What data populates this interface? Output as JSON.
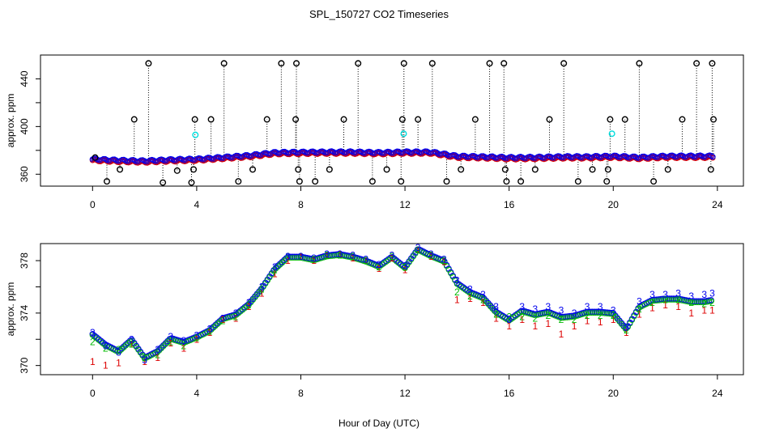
{
  "figure_title": "SPL_150727  CO2 Timeseries",
  "x_axis_label": "Hour of Day (UTC)",
  "colors": {
    "black": "#000000",
    "red": "#dd0000",
    "green": "#00bb00",
    "blue": "#0000ee",
    "cyan": "#00dddd"
  },
  "chart_data": [
    {
      "type": "scatter",
      "panel": "top",
      "ylabel": "approx. ppm",
      "xlim": [
        -2,
        25
      ],
      "ylim": [
        350,
        460
      ],
      "x_ticks": [
        0,
        4,
        8,
        12,
        16,
        20,
        24
      ],
      "y_ticks": [
        360,
        400,
        440
      ],
      "y_minor_ticks": [
        380,
        420
      ],
      "spike_times": [
        0.1,
        0.55,
        1.05,
        1.6,
        2.15,
        2.7,
        3.25,
        3.8,
        3.88,
        3.93,
        4.55,
        5.05,
        5.6,
        6.15,
        6.7,
        7.25,
        7.8,
        7.83,
        7.9,
        7.95,
        8.55,
        9.1,
        9.65,
        10.2,
        10.75,
        11.3,
        11.85,
        11.9,
        11.96,
        12.5,
        13.05,
        13.6,
        14.15,
        14.7,
        15.25,
        15.8,
        15.85,
        15.9,
        16.45,
        17.0,
        17.55,
        18.1,
        18.65,
        19.2,
        19.75,
        19.8,
        19.88,
        20.45,
        21.0,
        21.55,
        22.1,
        22.65,
        23.2,
        23.75,
        23.8,
        23.85
      ],
      "spike_values": [
        374,
        354,
        364,
        406,
        453,
        353,
        363,
        353,
        364,
        406,
        406,
        453,
        354,
        364,
        406,
        453,
        406,
        453,
        364,
        354,
        354,
        364,
        406,
        453,
        354,
        364,
        354,
        406,
        453,
        406,
        453,
        354,
        364,
        406,
        453,
        453,
        364,
        354,
        354,
        364,
        406,
        453,
        354,
        364,
        354,
        364,
        406,
        406,
        453,
        354,
        364,
        406,
        453,
        364,
        453,
        406
      ],
      "cyan_points": {
        "x": [
          3.95,
          11.95,
          19.95
        ],
        "y": [
          393,
          394,
          394
        ]
      },
      "series_note": "main trace: hourly-interpolated base level shown as dense circle markers",
      "base_level_x": [
        0,
        1,
        2,
        3,
        4,
        5,
        6,
        7,
        8,
        9,
        10,
        11,
        12,
        13,
        14,
        15,
        16,
        17,
        18,
        19,
        20,
        21,
        22,
        23,
        24
      ],
      "base_level_y": [
        372.5,
        371.5,
        371.0,
        372.0,
        372.5,
        374.0,
        375.5,
        378.0,
        378.3,
        378.5,
        378.5,
        378.0,
        378.5,
        378.5,
        375.0,
        374.5,
        373.8,
        374.0,
        374.5,
        374.5,
        375.0,
        374.0,
        375.0,
        375.0,
        375.0
      ]
    },
    {
      "type": "scatter",
      "panel": "bottom",
      "ylabel": "approx. ppm",
      "xlim": [
        -2,
        25
      ],
      "ylim": [
        369.3,
        379.3
      ],
      "x_ticks": [
        0,
        4,
        8,
        12,
        16,
        20,
        24
      ],
      "y_ticks": [
        370,
        374,
        378
      ],
      "y_minor_ticks": [
        372,
        376
      ],
      "x": [
        0.0,
        0.5,
        1.0,
        1.5,
        2.0,
        2.5,
        3.0,
        3.5,
        4.0,
        4.5,
        5.0,
        5.5,
        6.0,
        6.5,
        7.0,
        7.5,
        8.0,
        8.5,
        9.0,
        9.5,
        10.0,
        10.5,
        11.0,
        11.5,
        12.0,
        12.5,
        13.0,
        13.5,
        14.0,
        14.5,
        15.0,
        15.5,
        16.0,
        16.5,
        17.0,
        17.5,
        18.0,
        18.5,
        19.0,
        19.5,
        20.0,
        20.5,
        21.0,
        21.5,
        22.0,
        22.5,
        23.0,
        23.5,
        23.8
      ],
      "series": [
        {
          "name": "1",
          "marker": "1",
          "color": "red",
          "values": [
            370.3,
            370.0,
            370.2,
            371.6,
            370.3,
            370.6,
            371.7,
            371.3,
            372.0,
            372.5,
            373.5,
            373.6,
            374.5,
            375.5,
            377.0,
            378.0,
            378.3,
            378.0,
            378.4,
            378.5,
            378.2,
            378.0,
            377.4,
            378.2,
            377.3,
            378.8,
            378.3,
            377.9,
            375.0,
            375.1,
            374.8,
            373.6,
            373.0,
            373.5,
            373.0,
            373.2,
            372.4,
            373.0,
            373.4,
            373.3,
            373.5,
            372.5,
            373.9,
            374.4,
            374.6,
            374.5,
            374.0,
            374.2,
            374.2
          ]
        },
        {
          "name": "2",
          "marker": "2",
          "color": "green",
          "values": [
            371.8,
            371.3,
            371.2,
            371.6,
            370.6,
            370.8,
            371.8,
            371.5,
            372.1,
            372.6,
            373.4,
            373.7,
            374.6,
            375.8,
            377.3,
            378.3,
            378.3,
            378.1,
            378.4,
            378.4,
            378.3,
            378.0,
            377.5,
            378.3,
            377.5,
            378.8,
            378.4,
            378.0,
            375.6,
            375.3,
            375.0,
            373.9,
            373.7,
            373.7,
            373.6,
            373.8,
            373.5,
            373.5,
            373.8,
            373.8,
            373.8,
            372.7,
            374.3,
            374.8,
            375.0,
            375.0,
            374.8,
            374.7,
            374.8
          ]
        },
        {
          "name": "3",
          "marker": "3",
          "color": "blue",
          "values": [
            372.5,
            371.5,
            371.0,
            372.0,
            370.4,
            371.2,
            372.2,
            371.9,
            372.3,
            372.8,
            373.6,
            374.0,
            374.8,
            376.0,
            377.5,
            378.3,
            378.3,
            378.2,
            378.5,
            378.5,
            378.4,
            378.1,
            377.7,
            378.4,
            377.6,
            379.0,
            378.5,
            378.1,
            376.5,
            375.8,
            375.4,
            374.5,
            373.5,
            374.5,
            374.3,
            374.5,
            374.2,
            374.0,
            374.5,
            374.5,
            374.2,
            372.9,
            374.9,
            375.4,
            375.4,
            375.5,
            375.3,
            375.4,
            375.5
          ]
        }
      ],
      "circle_trace_values": [
        372.4,
        371.6,
        371.1,
        372.0,
        370.6,
        371.1,
        372.1,
        371.8,
        372.2,
        372.7,
        373.6,
        373.9,
        374.7,
        375.9,
        377.4,
        378.3,
        378.3,
        378.1,
        378.4,
        378.5,
        378.3,
        378.0,
        377.6,
        378.3,
        377.5,
        378.9,
        378.4,
        378.0,
        376.3,
        375.6,
        375.2,
        374.1,
        373.5,
        374.2,
        373.9,
        374.1,
        373.7,
        373.8,
        374.1,
        374.1,
        374.0,
        372.8,
        374.5,
        375.0,
        375.1,
        375.1,
        374.9,
        374.9,
        375.0
      ]
    }
  ]
}
